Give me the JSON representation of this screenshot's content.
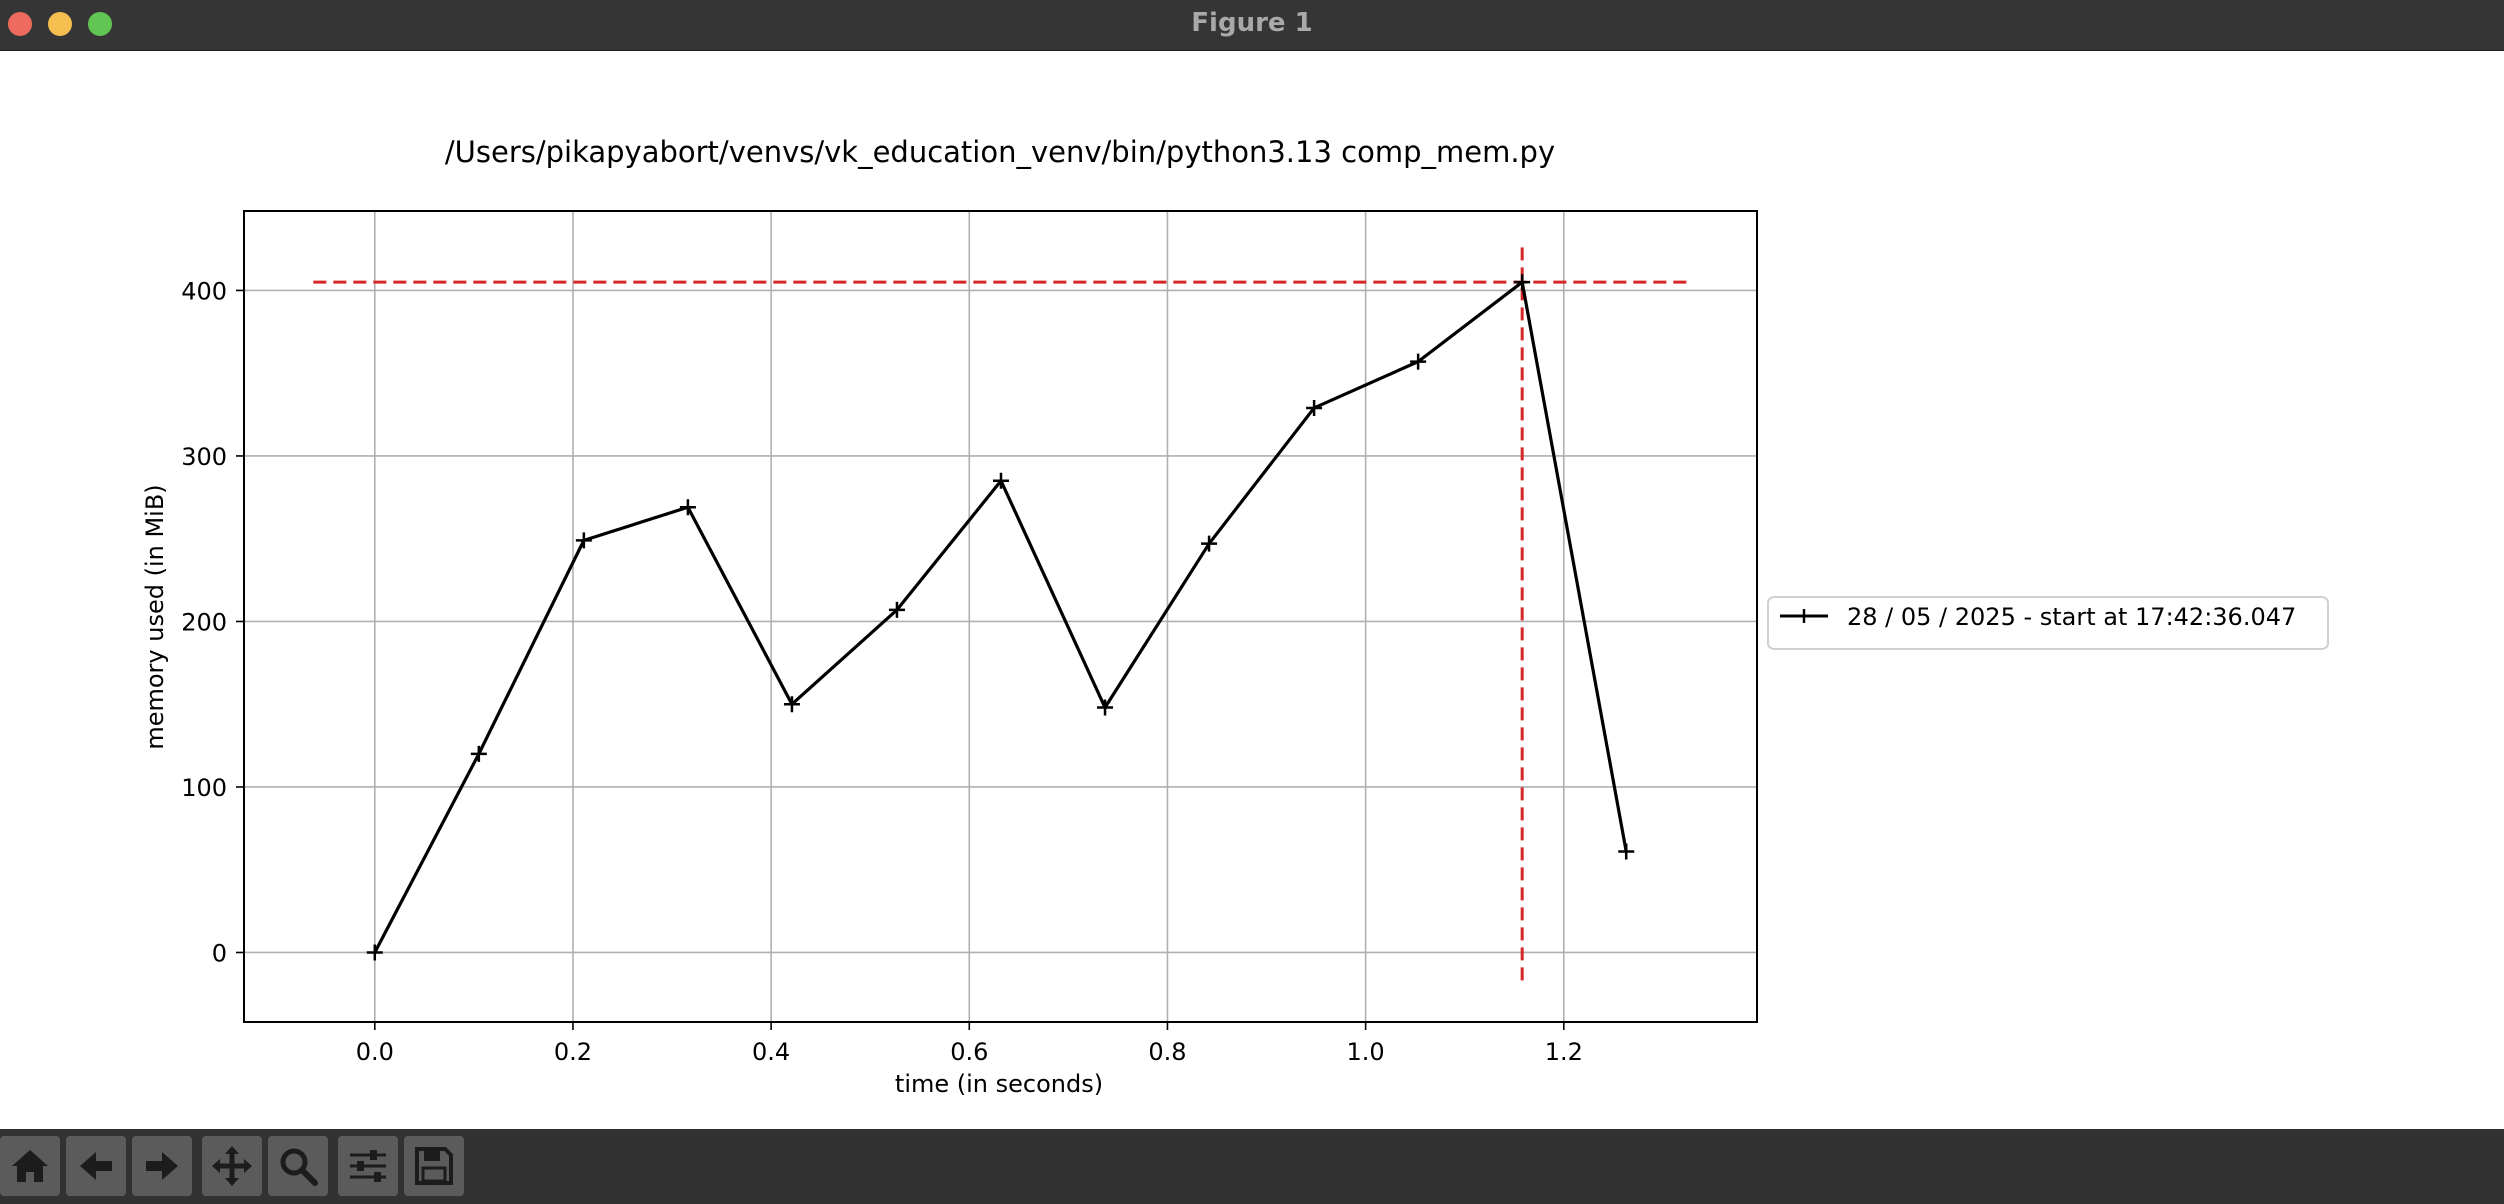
{
  "window": {
    "title": "Figure 1"
  },
  "chart_data": {
    "type": "line",
    "title": "/Users/pikapyabort/venvs/vk_education_venv/bin/python3.13 comp_mem.py",
    "xlabel": "time (in seconds)",
    "ylabel": "memory used (in MiB)",
    "xlim": [
      -0.132,
      1.395
    ],
    "ylim": [
      -42,
      448
    ],
    "xticks": [
      0.0,
      0.2,
      0.4,
      0.6,
      0.8,
      1.0,
      1.2
    ],
    "xtick_labels": [
      "0.0",
      "0.2",
      "0.4",
      "0.6",
      "0.8",
      "1.0",
      "1.2"
    ],
    "yticks": [
      0,
      100,
      200,
      300,
      400
    ],
    "ytick_labels": [
      "0",
      "100",
      "200",
      "300",
      "400"
    ],
    "grid": true,
    "legend_placement": "right, outside plot",
    "series": [
      {
        "name": "28 / 05 / 2025 - start at 17:42:36.047",
        "color": "#000000",
        "marker": "+",
        "x": [
          0.0,
          0.105,
          0.211,
          0.316,
          0.421,
          0.527,
          0.632,
          0.737,
          0.842,
          0.948,
          1.053,
          1.158,
          1.263
        ],
        "y": [
          0,
          120,
          249,
          269,
          150,
          207,
          285,
          148,
          247,
          329,
          357,
          405,
          61
        ]
      }
    ],
    "peak_lines": {
      "color": "#d62728",
      "style": "dashed",
      "x": 1.158,
      "y": 405
    }
  },
  "toolbar": {
    "buttons": [
      {
        "name": "home-button",
        "icon": "home-icon"
      },
      {
        "name": "back-button",
        "icon": "arrow-left-icon"
      },
      {
        "name": "forward-button",
        "icon": "arrow-right-icon"
      },
      {
        "name": "pan-button",
        "icon": "move-icon"
      },
      {
        "name": "zoom-button",
        "icon": "magnifier-icon"
      },
      {
        "name": "subplots-button",
        "icon": "sliders-icon"
      },
      {
        "name": "save-button",
        "icon": "floppy-disk-icon"
      }
    ]
  }
}
